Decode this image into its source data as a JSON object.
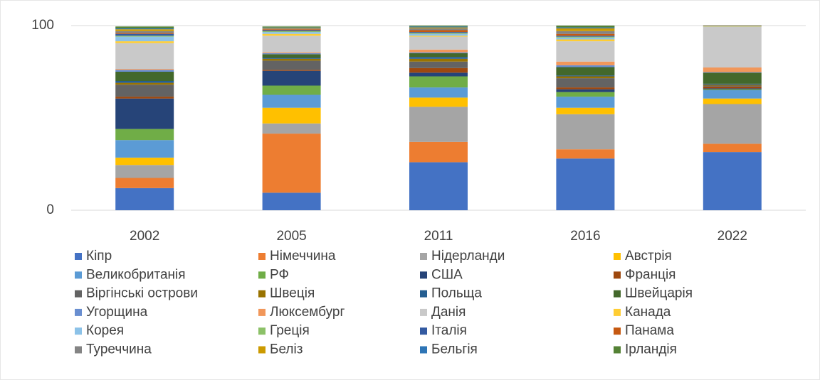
{
  "chart_data": {
    "type": "stacked_bar",
    "categories": [
      "2002",
      "2005",
      "2011",
      "2016",
      "2022"
    ],
    "ylim": [
      0,
      100
    ],
    "yticks": [
      0,
      100
    ],
    "grid": true,
    "series": [
      {
        "name": "Кіпр",
        "color": "#4472c4",
        "values": [
          12,
          9.5,
          26,
          28,
          31.5
        ]
      },
      {
        "name": "Німеччина",
        "color": "#ed7d31",
        "values": [
          5.5,
          32,
          11,
          5,
          4.5
        ]
      },
      {
        "name": "Нідерланди",
        "color": "#a5a5a5",
        "values": [
          7,
          5.5,
          19,
          19,
          21.5
        ]
      },
      {
        "name": "Австрія",
        "color": "#ffc000",
        "values": [
          4,
          8.5,
          5,
          3.5,
          3
        ]
      },
      {
        "name": "Великобританія",
        "color": "#5b9bd5",
        "values": [
          9.5,
          7,
          5.5,
          6,
          4.5
        ]
      },
      {
        "name": "РФ",
        "color": "#70ad47",
        "values": [
          6,
          5,
          6,
          2.5,
          0.5
        ]
      },
      {
        "name": "США",
        "color": "#264478",
        "values": [
          16.5,
          8,
          2,
          1.5,
          0.5
        ]
      },
      {
        "name": "Франція",
        "color": "#9e480e",
        "values": [
          1,
          0.5,
          2.5,
          1,
          1
        ]
      },
      {
        "name": "Віргінські острови",
        "color": "#636363",
        "values": [
          6.5,
          5,
          3.5,
          5,
          0.5
        ]
      },
      {
        "name": "Швеція",
        "color": "#997300",
        "values": [
          1,
          1,
          1.5,
          1,
          0.5
        ]
      },
      {
        "name": "Польща",
        "color": "#255e91",
        "values": [
          1,
          0.5,
          1,
          0.5,
          0.5
        ]
      },
      {
        "name": "Швейцарія",
        "color": "#43682b",
        "values": [
          5,
          2,
          2,
          4.5,
          6
        ]
      },
      {
        "name": "Угорщина",
        "color": "#698ed0",
        "values": [
          1,
          0.5,
          0.5,
          1,
          0.3
        ]
      },
      {
        "name": "Люксембург",
        "color": "#f1975a",
        "values": [
          0.5,
          0.5,
          1.5,
          2,
          2.5
        ]
      },
      {
        "name": "Данія",
        "color": "#c9c9c9",
        "values": [
          14,
          9,
          7,
          11,
          22
        ]
      },
      {
        "name": "Канада",
        "color": "#ffcd33",
        "values": [
          1,
          1,
          0.5,
          1,
          0.1
        ]
      },
      {
        "name": "Корея",
        "color": "#8cc2e8",
        "values": [
          2.5,
          1,
          1,
          1,
          0.1
        ]
      },
      {
        "name": "Греція",
        "color": "#8cc168",
        "values": [
          0.5,
          0.5,
          0.5,
          0.5,
          0.1
        ]
      },
      {
        "name": "Італія",
        "color": "#335aa1",
        "values": [
          1,
          0.5,
          0.5,
          0.5,
          0.1
        ]
      },
      {
        "name": "Панама",
        "color": "#c65911",
        "values": [
          0.5,
          0.5,
          1,
          1,
          0.1
        ]
      },
      {
        "name": "Туреччина",
        "color": "#848484",
        "values": [
          1,
          0.5,
          1,
          1.5,
          0.1
        ]
      },
      {
        "name": "Беліз",
        "color": "#cc9a00",
        "values": [
          1,
          0.3,
          0.5,
          1.5,
          0.1
        ]
      },
      {
        "name": "Бельгія",
        "color": "#2e75b6",
        "values": [
          0.5,
          0.2,
          0.5,
          0.5,
          0.1
        ]
      },
      {
        "name": "Ірландія",
        "color": "#548235",
        "values": [
          1,
          0.5,
          0.5,
          1,
          0.1
        ]
      }
    ]
  }
}
